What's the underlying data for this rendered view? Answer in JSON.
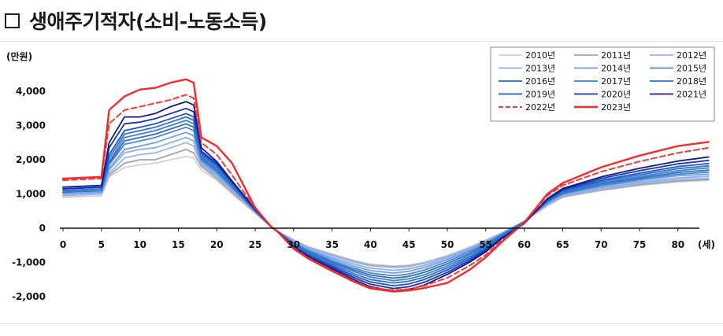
{
  "title": "생애주기적자(소비-노동소득)",
  "chart_data": {
    "type": "line",
    "title": "생애주기적자(소비-노동소득)",
    "ylabel": "(만원)",
    "xlabel": "(세)",
    "x_ticks": [
      0,
      5,
      10,
      15,
      20,
      25,
      30,
      35,
      40,
      45,
      50,
      55,
      60,
      65,
      70,
      75,
      80
    ],
    "y_ticks": [
      4000,
      3000,
      2000,
      1000,
      0,
      -1000,
      -2000
    ],
    "y_tick_labels": [
      "4,000",
      "3,000",
      "2,000",
      "1,000",
      "0",
      "-1,000",
      "-2,000"
    ],
    "xlim": [
      0,
      82
    ],
    "ylim": [
      -2300,
      4600
    ],
    "legend_position": "top-right",
    "x": [
      0,
      5,
      6,
      8,
      10,
      12,
      14,
      16,
      17,
      18,
      20,
      22,
      25,
      27,
      28,
      30,
      32,
      35,
      38,
      40,
      43,
      45,
      47,
      50,
      53,
      55,
      57,
      60,
      63,
      65,
      70,
      75,
      80,
      84
    ],
    "series": [
      {
        "name": "2010년",
        "color": "#d0d0d0",
        "dashed": false,
        "width": 1.8,
        "values": [
          900,
          950,
          1500,
          1780,
          1850,
          1900,
          2000,
          2100,
          2050,
          1700,
          1400,
          1000,
          450,
          50,
          -100,
          -350,
          -550,
          -750,
          -950,
          -1050,
          -1100,
          -1080,
          -1000,
          -800,
          -550,
          -350,
          -150,
          200,
          650,
          900,
          1100,
          1250,
          1350,
          1400
        ]
      },
      {
        "name": "2011년",
        "color": "#a5a5a5",
        "dashed": false,
        "width": 1.8,
        "values": [
          950,
          1000,
          1550,
          1900,
          2000,
          2000,
          2150,
          2300,
          2200,
          1800,
          1450,
          1050,
          450,
          50,
          -100,
          -350,
          -560,
          -780,
          -980,
          -1080,
          -1130,
          -1100,
          -1020,
          -820,
          -560,
          -360,
          -150,
          200,
          680,
          920,
          1120,
          1270,
          1380,
          1420
        ]
      },
      {
        "name": "2012년",
        "color": "#9cb4ee",
        "dashed": false,
        "width": 1.8,
        "values": [
          950,
          1000,
          1600,
          2050,
          2150,
          2200,
          2350,
          2500,
          2400,
          1850,
          1500,
          1100,
          470,
          60,
          -100,
          -380,
          -580,
          -800,
          -1000,
          -1100,
          -1150,
          -1120,
          -1030,
          -830,
          -570,
          -370,
          -160,
          200,
          700,
          940,
          1150,
          1300,
          1420,
          1460
        ]
      },
      {
        "name": "2013년",
        "color": "#86aef0",
        "dashed": false,
        "width": 1.8,
        "values": [
          1000,
          1050,
          1700,
          2200,
          2300,
          2350,
          2500,
          2650,
          2550,
          1900,
          1550,
          1150,
          480,
          60,
          -100,
          -400,
          -610,
          -850,
          -1060,
          -1170,
          -1230,
          -1190,
          -1090,
          -870,
          -600,
          -390,
          -170,
          200,
          720,
          960,
          1180,
          1340,
          1470,
          1520
        ]
      },
      {
        "name": "2014년",
        "color": "#6d9eeb",
        "dashed": false,
        "width": 1.8,
        "values": [
          1000,
          1050,
          1750,
          2300,
          2400,
          2500,
          2650,
          2800,
          2700,
          1950,
          1600,
          1150,
          490,
          60,
          -100,
          -420,
          -640,
          -900,
          -1120,
          -1240,
          -1310,
          -1260,
          -1150,
          -920,
          -640,
          -420,
          -180,
          200,
          740,
          990,
          1220,
          1390,
          1530,
          1580
        ]
      },
      {
        "name": "2015년",
        "color": "#4c86c6",
        "dashed": false,
        "width": 1.8,
        "values": [
          1050,
          1100,
          1850,
          2450,
          2550,
          2650,
          2800,
          2950,
          2850,
          2000,
          1650,
          1200,
          500,
          60,
          -100,
          -440,
          -670,
          -950,
          -1180,
          -1310,
          -1390,
          -1340,
          -1220,
          -980,
          -680,
          -450,
          -200,
          190,
          760,
          1010,
          1250,
          1430,
          1580,
          1640
        ]
      },
      {
        "name": "2016년",
        "color": "#2f6fb5",
        "dashed": false,
        "width": 1.8,
        "values": [
          1050,
          1100,
          1900,
          2550,
          2650,
          2750,
          2900,
          3050,
          2950,
          2050,
          1700,
          1230,
          510,
          60,
          -110,
          -460,
          -700,
          -990,
          -1230,
          -1370,
          -1460,
          -1410,
          -1290,
          -1040,
          -730,
          -490,
          -220,
          180,
          770,
          1030,
          1290,
          1470,
          1630,
          1700
        ]
      },
      {
        "name": "2017년",
        "color": "#3f7fcf",
        "dashed": false,
        "width": 1.8,
        "values": [
          1100,
          1150,
          1950,
          2650,
          2750,
          2850,
          3000,
          3150,
          3050,
          2100,
          1750,
          1260,
          520,
          60,
          -110,
          -480,
          -730,
          -1030,
          -1280,
          -1430,
          -1530,
          -1480,
          -1360,
          -1100,
          -780,
          -530,
          -240,
          170,
          780,
          1050,
          1320,
          1510,
          1680,
          1760
        ]
      },
      {
        "name": "2018년",
        "color": "#2d6fd2",
        "dashed": false,
        "width": 1.8,
        "values": [
          1100,
          1150,
          2050,
          2750,
          2850,
          2950,
          3100,
          3250,
          3150,
          2150,
          1800,
          1290,
          530,
          60,
          -110,
          -500,
          -760,
          -1070,
          -1340,
          -1500,
          -1600,
          -1550,
          -1430,
          -1160,
          -830,
          -570,
          -260,
          160,
          800,
          1070,
          1360,
          1560,
          1740,
          1820
        ]
      },
      {
        "name": "2019년",
        "color": "#1f57c0",
        "dashed": false,
        "width": 1.8,
        "values": [
          1150,
          1200,
          2150,
          2850,
          2950,
          3050,
          3200,
          3350,
          3250,
          2200,
          1850,
          1320,
          540,
          60,
          -110,
          -520,
          -790,
          -1110,
          -1400,
          -1570,
          -1680,
          -1630,
          -1500,
          -1220,
          -880,
          -610,
          -280,
          150,
          820,
          1100,
          1400,
          1610,
          1800,
          1890
        ]
      },
      {
        "name": "2020년",
        "color": "#1a2fb8",
        "dashed": false,
        "width": 1.8,
        "values": [
          1150,
          1200,
          2350,
          3050,
          3100,
          3200,
          3350,
          3500,
          3400,
          2250,
          1900,
          1350,
          550,
          60,
          -110,
          -540,
          -820,
          -1150,
          -1460,
          -1640,
          -1760,
          -1710,
          -1580,
          -1290,
          -930,
          -650,
          -300,
          140,
          840,
          1130,
          1450,
          1680,
          1880,
          1980
        ]
      },
      {
        "name": "2021년",
        "color": "#101a80",
        "dashed": false,
        "width": 1.8,
        "values": [
          1200,
          1250,
          2500,
          3250,
          3250,
          3350,
          3550,
          3700,
          3600,
          2350,
          1950,
          1380,
          560,
          60,
          -110,
          -560,
          -850,
          -1190,
          -1520,
          -1710,
          -1840,
          -1790,
          -1660,
          -1350,
          -980,
          -690,
          -320,
          130,
          860,
          1160,
          1500,
          1750,
          1960,
          2080
        ]
      },
      {
        "name": "2022년",
        "color": "#ef3b3b",
        "dashed": true,
        "width": 2,
        "values": [
          1400,
          1450,
          3050,
          3450,
          3550,
          3650,
          3750,
          3900,
          3800,
          2500,
          2150,
          1550,
          580,
          60,
          -120,
          -580,
          -880,
          -1230,
          -1560,
          -1740,
          -1810,
          -1780,
          -1680,
          -1450,
          -1080,
          -780,
          -380,
          150,
          950,
          1250,
          1650,
          1950,
          2200,
          2350
        ]
      },
      {
        "name": "2023년",
        "color": "#ee2e2e",
        "dashed": false,
        "width": 2.4,
        "values": [
          1450,
          1500,
          3450,
          3850,
          4050,
          4100,
          4250,
          4350,
          4250,
          2650,
          2400,
          1900,
          600,
          60,
          -120,
          -600,
          -900,
          -1250,
          -1580,
          -1760,
          -1850,
          -1820,
          -1750,
          -1600,
          -1200,
          -850,
          -420,
          160,
          1000,
          1320,
          1780,
          2120,
          2400,
          2520
        ]
      }
    ]
  }
}
